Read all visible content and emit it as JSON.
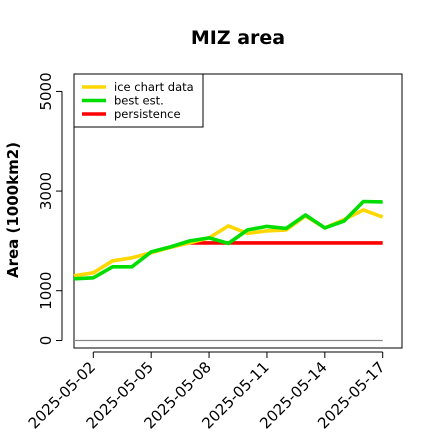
{
  "chart_data": {
    "type": "line",
    "title": "MIZ area",
    "xlabel": "",
    "ylabel": "Area (1000km2)",
    "x_tick_labels": [
      "2025-05-02",
      "2025-05-05",
      "2025-05-08",
      "2025-05-11",
      "2025-05-14",
      "2025-05-17"
    ],
    "x_tick_values": [
      2,
      5,
      8,
      11,
      14,
      17
    ],
    "xlim": [
      1,
      18
    ],
    "y_tick_labels": [
      "0",
      "1000",
      "3000",
      "5000"
    ],
    "y_tick_values": [
      0,
      1000,
      3000,
      5000
    ],
    "ylim": [
      -150,
      5350
    ],
    "grid": false,
    "legend_position": "top-left",
    "series": [
      {
        "name": "ice chart data",
        "color": "#FFD700",
        "x": [
          1,
          2,
          3,
          4,
          5,
          6,
          7,
          8,
          9,
          10,
          11,
          12,
          13,
          14,
          15,
          16,
          17
        ],
        "values": [
          1300,
          1360,
          1600,
          1660,
          1760,
          1870,
          1960,
          2060,
          2300,
          2150,
          2200,
          2220,
          2500,
          2260,
          2430,
          2620,
          2480
        ]
      },
      {
        "name": "best est.",
        "color": "#00DD00",
        "x": [
          1,
          2,
          3,
          4,
          5,
          6,
          7,
          8,
          9,
          10,
          11,
          12,
          13,
          14,
          15,
          16,
          17
        ],
        "values": [
          1240,
          1260,
          1480,
          1480,
          1780,
          1880,
          2000,
          2060,
          1950,
          2220,
          2290,
          2250,
          2520,
          2260,
          2400,
          2790,
          2780
        ]
      },
      {
        "name": "persistence",
        "color": "#FF0000",
        "x": [
          7,
          8,
          9,
          10,
          11,
          12,
          13,
          14,
          15,
          16,
          17
        ],
        "values": [
          1960,
          1960,
          1960,
          1960,
          1960,
          1960,
          1960,
          1960,
          1960,
          1960,
          1960
        ]
      },
      {
        "color": "#888888",
        "x": [
          1,
          17
        ],
        "values": [
          0,
          0
        ]
      }
    ]
  }
}
